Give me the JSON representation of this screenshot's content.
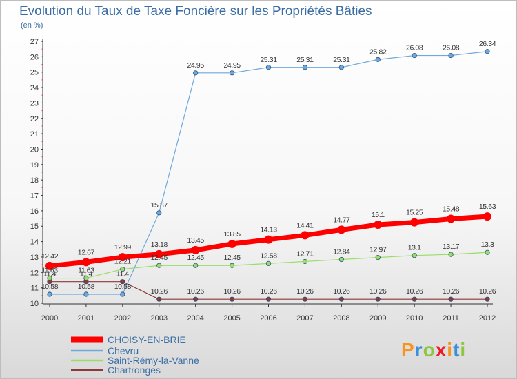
{
  "title": "Evolution du Taux de Taxe Foncière sur les Propriétés Bâties",
  "subtitle": "(en %)",
  "logo": {
    "text": "Proxiti",
    "colors": [
      "#f7941d",
      "#3a8fd9",
      "#8dc63f",
      "#ed1c24",
      "#f7941d",
      "#3a8fd9",
      "#8dc63f"
    ]
  },
  "chart_data": {
    "type": "line",
    "x": [
      "2000",
      "2001",
      "2002",
      "2003",
      "2004",
      "2005",
      "2006",
      "2007",
      "2008",
      "2009",
      "2010",
      "2011",
      "2012"
    ],
    "ylim": [
      10,
      27
    ],
    "yticks": [
      10,
      11,
      12,
      13,
      14,
      15,
      16,
      17,
      18,
      19,
      20,
      21,
      22,
      23,
      24,
      25,
      26,
      27
    ],
    "grid": false,
    "legend_position": "bottom-left",
    "series": [
      {
        "name": "CHOISY-EN-BRIE",
        "color": "#ff0000",
        "values": [
          12.42,
          12.67,
          12.99,
          13.18,
          13.45,
          13.85,
          14.13,
          14.41,
          14.77,
          15.1,
          15.25,
          15.48,
          15.63
        ],
        "labels": [
          "12.42",
          "12.67",
          "12.99",
          "13.18",
          "13.45",
          "13.85",
          "14.13",
          "14.41",
          "14.77",
          "15.1",
          "15.25",
          "15.48",
          "15.63"
        ],
        "label_pos": "above"
      },
      {
        "name": "Chevru",
        "color": "#6fa8dc",
        "values": [
          10.58,
          10.58,
          10.58,
          15.87,
          24.95,
          24.95,
          25.31,
          25.31,
          25.31,
          25.82,
          26.08,
          26.08,
          26.34
        ],
        "labels": [
          "10.58",
          "10.58",
          "10.58",
          "15.87",
          "24.95",
          "24.95",
          "25.31",
          "25.31",
          "25.31",
          "25.82",
          "26.08",
          "26.08",
          "26.34"
        ],
        "label_pos": "above"
      },
      {
        "name": "Saint-Rémy-la-Vanne",
        "color": "#99dd66",
        "values": [
          11.63,
          11.63,
          12.21,
          12.45,
          12.45,
          12.45,
          12.58,
          12.71,
          12.84,
          12.97,
          13.1,
          13.17,
          13.3
        ],
        "labels": [
          "11.63",
          "11.63",
          "12.21",
          "12.45",
          "12.45",
          "12.45",
          "12.58",
          "12.71",
          "12.84",
          "12.97",
          "13.1",
          "13.17",
          "13.3"
        ],
        "label_pos": "above"
      },
      {
        "name": "Chartronges",
        "color": "#8b3a3a",
        "values": [
          11.4,
          11.4,
          11.4,
          10.26,
          10.26,
          10.26,
          10.26,
          10.26,
          10.26,
          10.26,
          10.26,
          10.26,
          10.26
        ],
        "labels": [
          "11.4",
          "11.4",
          "11.4",
          "10.26",
          "10.26",
          "10.26",
          "10.26",
          "10.26",
          "10.26",
          "10.26",
          "10.26",
          "10.26",
          "10.26"
        ],
        "label_pos": "above"
      }
    ]
  }
}
